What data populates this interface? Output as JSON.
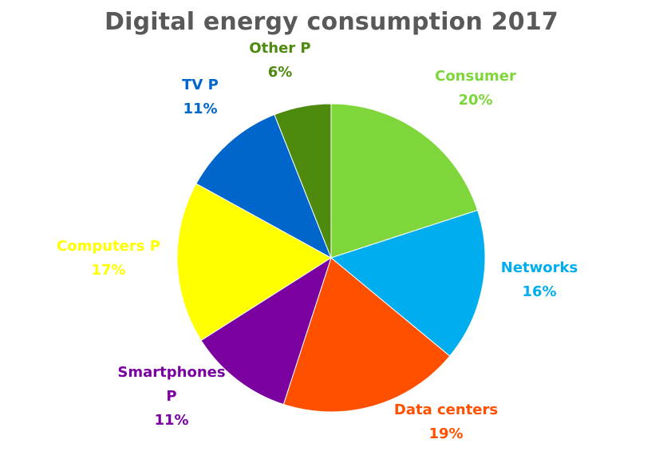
{
  "chart_data": {
    "type": "pie",
    "title": "Digital energy consumption 2017",
    "start_angle_deg": 0,
    "direction": "clockwise",
    "slices": [
      {
        "label_lines": [
          "Consumer"
        ],
        "value": 20,
        "value_label": "20%",
        "color": "#7ED63B",
        "label_color": "#7ED63B"
      },
      {
        "label_lines": [
          "Networks"
        ],
        "value": 16,
        "value_label": "16%",
        "color": "#00AEF0",
        "label_color": "#00AEF0"
      },
      {
        "label_lines": [
          "Data centers"
        ],
        "value": 19,
        "value_label": "19%",
        "color": "#FF5000",
        "label_color": "#FF5000"
      },
      {
        "label_lines": [
          "Smartphones",
          "P"
        ],
        "value": 11,
        "value_label": "11%",
        "color": "#7A00A0",
        "label_color": "#7A00A0"
      },
      {
        "label_lines": [
          "Computers P"
        ],
        "value": 17,
        "value_label": "17%",
        "color": "#FFFF00",
        "label_color": "#FFFF00"
      },
      {
        "label_lines": [
          "TV P"
        ],
        "value": 11,
        "value_label": "11%",
        "color": "#0066CC",
        "label_color": "#0066CC"
      },
      {
        "label_lines": [
          "Other P"
        ],
        "value": 6,
        "value_label": "6%",
        "color": "#4E8A0E",
        "label_color": "#4E8A0E"
      }
    ]
  }
}
